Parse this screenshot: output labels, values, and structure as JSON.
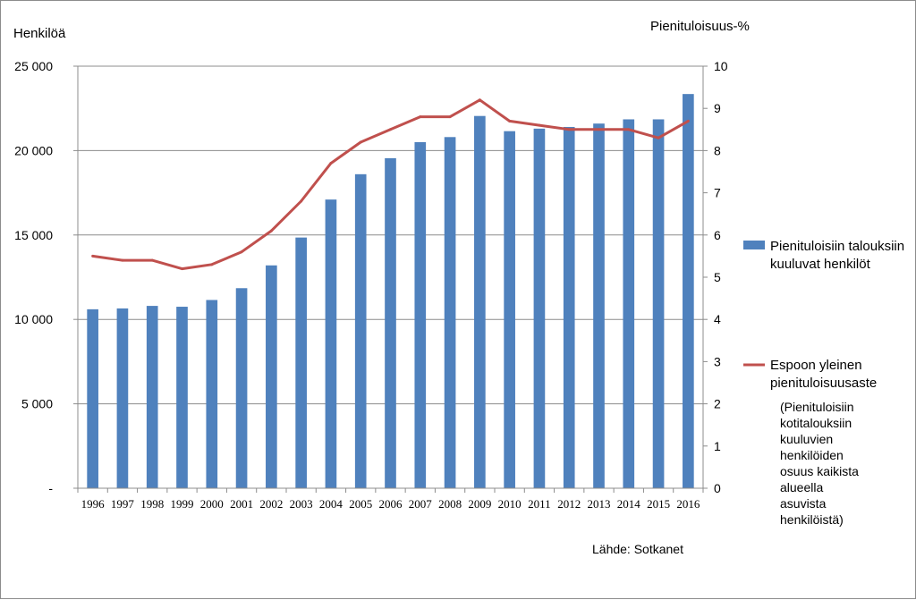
{
  "chart_data": {
    "type": "bar+line",
    "left_axis_title": "Henkilöä",
    "right_axis_title": "Pienituloisuus-%",
    "left_ylim": [
      0,
      25000
    ],
    "right_ylim": [
      0,
      10
    ],
    "left_ticks": [
      "-",
      "5 000",
      "10 000",
      "15 000",
      "20 000",
      "25 000"
    ],
    "right_ticks": [
      "0",
      "1",
      "2",
      "3",
      "4",
      "5",
      "6",
      "7",
      "8",
      "9",
      "10"
    ],
    "categories": [
      "1996",
      "1997",
      "1998",
      "1999",
      "2000",
      "2001",
      "2002",
      "2003",
      "2004",
      "2005",
      "2006",
      "2007",
      "2008",
      "2009",
      "2010",
      "2011",
      "2012",
      "2013",
      "2014",
      "2015",
      "2016"
    ],
    "grid": true,
    "legend_position": "right",
    "series": [
      {
        "name": "Pienituloisiin talouksiin kuuluvat henkilöt",
        "name_lines": [
          "Pienituloisiin talouksiin",
          "kuuluvat henkilöt"
        ],
        "type": "bar",
        "axis": "left",
        "color": "#4f81bd",
        "values": [
          10600,
          10650,
          10800,
          10750,
          11150,
          11850,
          13200,
          14850,
          17100,
          18600,
          19550,
          20500,
          20800,
          22050,
          21150,
          21300,
          21400,
          21600,
          21850,
          21850,
          23350
        ]
      },
      {
        "name": "Espoon yleinen pienituloisuusaste",
        "name_lines": [
          "Espoon yleinen",
          "pienituloisuusaste"
        ],
        "type": "line",
        "axis": "right",
        "color": "#c0504d",
        "values": [
          5.5,
          5.4,
          5.4,
          5.2,
          5.3,
          5.6,
          6.1,
          6.8,
          7.7,
          8.2,
          8.5,
          8.8,
          8.8,
          9.2,
          8.7,
          8.6,
          8.5,
          8.5,
          8.5,
          8.3,
          8.7
        ]
      }
    ],
    "legend_note_lines": [
      "(Pienituloisiin",
      "kotitalouksiin",
      "kuuluvien",
      "henkilöiden",
      "osuus kaikista",
      "alueella",
      "asuvista",
      "henkilöistä)"
    ],
    "source": "Lähde: Sotkanet"
  }
}
